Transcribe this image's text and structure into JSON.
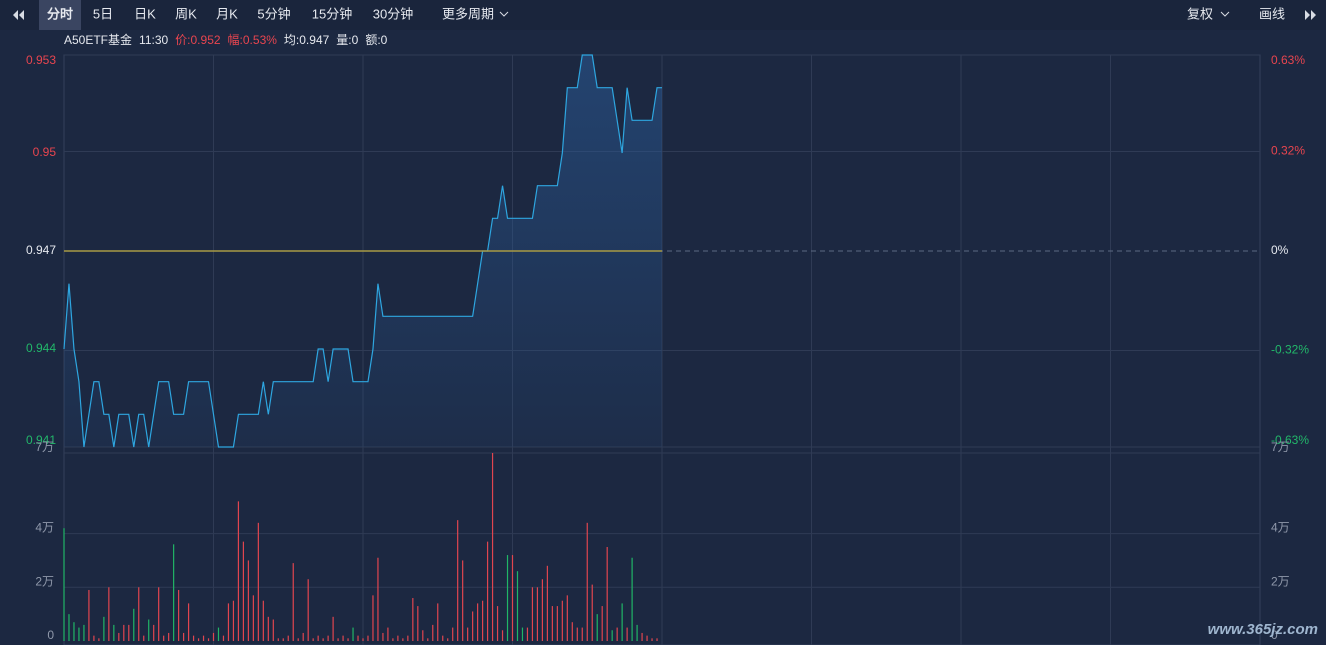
{
  "toolbar": {
    "tabs": [
      "分时",
      "5日",
      "日K",
      "周K",
      "月K",
      "5分钟",
      "15分钟",
      "30分钟",
      "更多周期"
    ],
    "right": [
      "复权",
      "画线"
    ]
  },
  "info": [
    {
      "text": "A50ETF基金",
      "color": "#e6e9ef"
    },
    {
      "text": "11:30",
      "color": "#e6e9ef"
    },
    {
      "text": "价:0.952",
      "color": "#e8454f"
    },
    {
      "text": "幅:0.53%",
      "color": "#e8454f"
    },
    {
      "text": "均:0.947",
      "color": "#e6e9ef"
    },
    {
      "text": "量:0",
      "color": "#e6e9ef"
    },
    {
      "text": "额:0",
      "color": "#e6e9ef"
    }
  ],
  "watermark": "www.365jz.com",
  "chart_data": [
    {
      "type": "line",
      "xlim": [
        0,
        240
      ],
      "ylim": [
        0.941,
        0.953
      ],
      "yticks": [
        0.953,
        0.95,
        0.947,
        0.944,
        0.941
      ],
      "y2lim": [
        -0.63,
        0.63
      ],
      "y2ticks": [
        {
          "value": 0.63,
          "label": "0.63%"
        },
        {
          "value": 0.32,
          "label": "0.32%"
        },
        {
          "value": 0,
          "label": "0%"
        },
        {
          "value": -0.32,
          "label": "-0.32%"
        },
        {
          "value": -0.63,
          "label": "-0.63%"
        }
      ],
      "series": [
        {
          "color": "#2ea6e0",
          "values": [
            0.944,
            0.946,
            0.944,
            0.943,
            0.941,
            0.942,
            0.943,
            0.943,
            0.942,
            0.942,
            0.941,
            0.942,
            0.942,
            0.942,
            0.941,
            0.942,
            0.942,
            0.941,
            0.942,
            0.943,
            0.943,
            0.943,
            0.942,
            0.942,
            0.942,
            0.943,
            0.943,
            0.943,
            0.943,
            0.943,
            0.942,
            0.941,
            0.941,
            0.941,
            0.941,
            0.942,
            0.942,
            0.942,
            0.942,
            0.942,
            0.943,
            0.942,
            0.943,
            0.943,
            0.943,
            0.943,
            0.943,
            0.943,
            0.943,
            0.943,
            0.943,
            0.944,
            0.944,
            0.943,
            0.944,
            0.944,
            0.944,
            0.944,
            0.943,
            0.943,
            0.943,
            0.943,
            0.944,
            0.946,
            0.945,
            0.945,
            0.945,
            0.945,
            0.945,
            0.945,
            0.945,
            0.945,
            0.945,
            0.945,
            0.945,
            0.945,
            0.945,
            0.945,
            0.945,
            0.945,
            0.945,
            0.945,
            0.945,
            0.946,
            0.947,
            0.947,
            0.948,
            0.948,
            0.949,
            0.948,
            0.948,
            0.948,
            0.948,
            0.948,
            0.948,
            0.949,
            0.949,
            0.949,
            0.949,
            0.949,
            0.95,
            0.952,
            0.952,
            0.952,
            0.953,
            0.953,
            0.953,
            0.952,
            0.952,
            0.952,
            0.952,
            0.951,
            0.95,
            0.952,
            0.951,
            0.951,
            0.951,
            0.951,
            0.951,
            0.952,
            0.952
          ]
        },
        {
          "color": "#a89a45",
          "values": [
            0.947,
            0.947,
            0.947,
            0.947,
            0.947,
            0.947,
            0.947,
            0.947,
            0.947,
            0.947,
            0.947,
            0.947,
            0.947,
            0.947,
            0.947,
            0.947,
            0.947,
            0.947,
            0.947,
            0.947,
            0.947,
            0.947,
            0.947,
            0.947,
            0.947,
            0.947,
            0.947,
            0.947,
            0.947,
            0.947,
            0.947,
            0.947,
            0.947,
            0.947,
            0.947,
            0.947,
            0.947,
            0.947,
            0.947,
            0.947,
            0.947,
            0.947,
            0.947,
            0.947,
            0.947,
            0.947,
            0.947,
            0.947,
            0.947,
            0.947,
            0.947,
            0.947,
            0.947,
            0.947,
            0.947,
            0.947,
            0.947,
            0.947,
            0.947,
            0.947,
            0.947,
            0.947,
            0.947,
            0.947,
            0.947,
            0.947,
            0.947,
            0.947,
            0.947,
            0.947,
            0.947,
            0.947,
            0.947,
            0.947,
            0.947,
            0.947,
            0.947,
            0.947,
            0.947,
            0.947,
            0.947,
            0.947,
            0.947,
            0.947,
            0.947,
            0.947,
            0.947,
            0.947,
            0.947,
            0.947,
            0.947,
            0.947,
            0.947,
            0.947,
            0.947,
            0.947,
            0.947,
            0.947,
            0.947,
            0.947,
            0.947,
            0.947,
            0.947,
            0.947,
            0.947,
            0.947,
            0.947,
            0.947,
            0.947,
            0.947,
            0.947,
            0.947,
            0.947,
            0.947,
            0.947,
            0.947,
            0.947,
            0.947,
            0.947,
            0.947,
            0.947
          ]
        }
      ]
    },
    {
      "type": "bar",
      "xlim": [
        0,
        240
      ],
      "ylim": [
        0,
        7
      ],
      "yticks": [
        {
          "value": 7,
          "label": "7万"
        },
        {
          "value": 4,
          "label": "4万"
        },
        {
          "value": 2,
          "label": "2万"
        },
        0
      ],
      "values": [
        4.2,
        1.0,
        0.7,
        0.5,
        0.6,
        1.9,
        0.2,
        0.1,
        0.9,
        2.0,
        0.6,
        0.3,
        0.6,
        0.6,
        1.2,
        2.0,
        0.2,
        0.8,
        0.6,
        2.0,
        0.2,
        0.3,
        3.6,
        1.9,
        0.3,
        1.4,
        0.2,
        0.1,
        0.2,
        0.1,
        0.3,
        0.5,
        0.2,
        1.4,
        1.5,
        5.2,
        3.7,
        3.0,
        1.7,
        4.4,
        1.5,
        0.9,
        0.8,
        0.1,
        0.1,
        0.2,
        2.9,
        0.1,
        0.3,
        2.3,
        0.1,
        0.2,
        0.1,
        0.2,
        0.9,
        0.1,
        0.2,
        0.1,
        0.5,
        0.2,
        0.1,
        0.2,
        1.7,
        3.1,
        0.3,
        0.5,
        0.1,
        0.2,
        0.1,
        0.2,
        1.6,
        1.3,
        0.4,
        0.1,
        0.6,
        1.4,
        0.2,
        0.1,
        0.5,
        4.5,
        3.0,
        0.5,
        1.1,
        1.4,
        1.5,
        3.7,
        7.0,
        1.3,
        0.4,
        3.2,
        3.2,
        2.6,
        0.5,
        0.5,
        2.0,
        2.0,
        2.3,
        2.8,
        1.3,
        1.3,
        1.5,
        1.7,
        0.7,
        0.5,
        0.5,
        4.4,
        2.1,
        1.0,
        1.3,
        3.5,
        0.4,
        0.5,
        1.4,
        0.5,
        3.1,
        0.6,
        0.3,
        0.2,
        0.1,
        0.1,
        0
      ],
      "colors": [
        "#20b566",
        "#20b566",
        "#20b566",
        "#20b566",
        "#20b566",
        "#e0454f",
        "#e0454f",
        "#e0454f",
        "#20b566",
        "#e0454f",
        "#20b566",
        "#e0454f",
        "#e0454f",
        "#e0454f",
        "#20b566",
        "#e0454f",
        "#e0454f",
        "#20b566",
        "#e0454f",
        "#e0454f",
        "#e0454f",
        "#e0454f",
        "#20b566",
        "#e0454f",
        "#e0454f",
        "#e0454f",
        "#e0454f",
        "#e0454f",
        "#e0454f",
        "#e0454f",
        "#e0454f",
        "#20b566",
        "#e0454f",
        "#e0454f",
        "#e0454f",
        "#e0454f",
        "#e0454f",
        "#e0454f",
        "#e0454f",
        "#e0454f",
        "#e0454f",
        "#e0454f",
        "#e0454f",
        "#e0454f",
        "#e0454f",
        "#e0454f",
        "#e0454f",
        "#e0454f",
        "#e0454f",
        "#e0454f",
        "#e0454f",
        "#e0454f",
        "#e0454f",
        "#e0454f",
        "#e0454f",
        "#e0454f",
        "#e0454f",
        "#e0454f",
        "#20b566",
        "#e0454f",
        "#e0454f",
        "#e0454f",
        "#e0454f",
        "#e0454f",
        "#e0454f",
        "#e0454f",
        "#e0454f",
        "#e0454f",
        "#e0454f",
        "#e0454f",
        "#e0454f",
        "#e0454f",
        "#e0454f",
        "#e0454f",
        "#e0454f",
        "#e0454f",
        "#e0454f",
        "#e0454f",
        "#e0454f",
        "#e0454f",
        "#e0454f",
        "#e0454f",
        "#e0454f",
        "#e0454f",
        "#e0454f",
        "#e0454f",
        "#e0454f",
        "#e0454f",
        "#e0454f",
        "#20b566",
        "#e0454f",
        "#20b566",
        "#20b566",
        "#e0454f",
        "#e0454f",
        "#e0454f",
        "#e0454f",
        "#e0454f",
        "#e0454f",
        "#e0454f",
        "#e0454f",
        "#e0454f",
        "#e0454f",
        "#e0454f",
        "#e0454f",
        "#e0454f",
        "#e0454f",
        "#20b566",
        "#e0454f",
        "#e0454f",
        "#20b566",
        "#e0454f",
        "#20b566",
        "#e0454f",
        "#20b566",
        "#20b566",
        "#e0454f",
        "#e0454f",
        "#e0454f",
        "#e0454f",
        "#e0454f"
      ]
    }
  ]
}
